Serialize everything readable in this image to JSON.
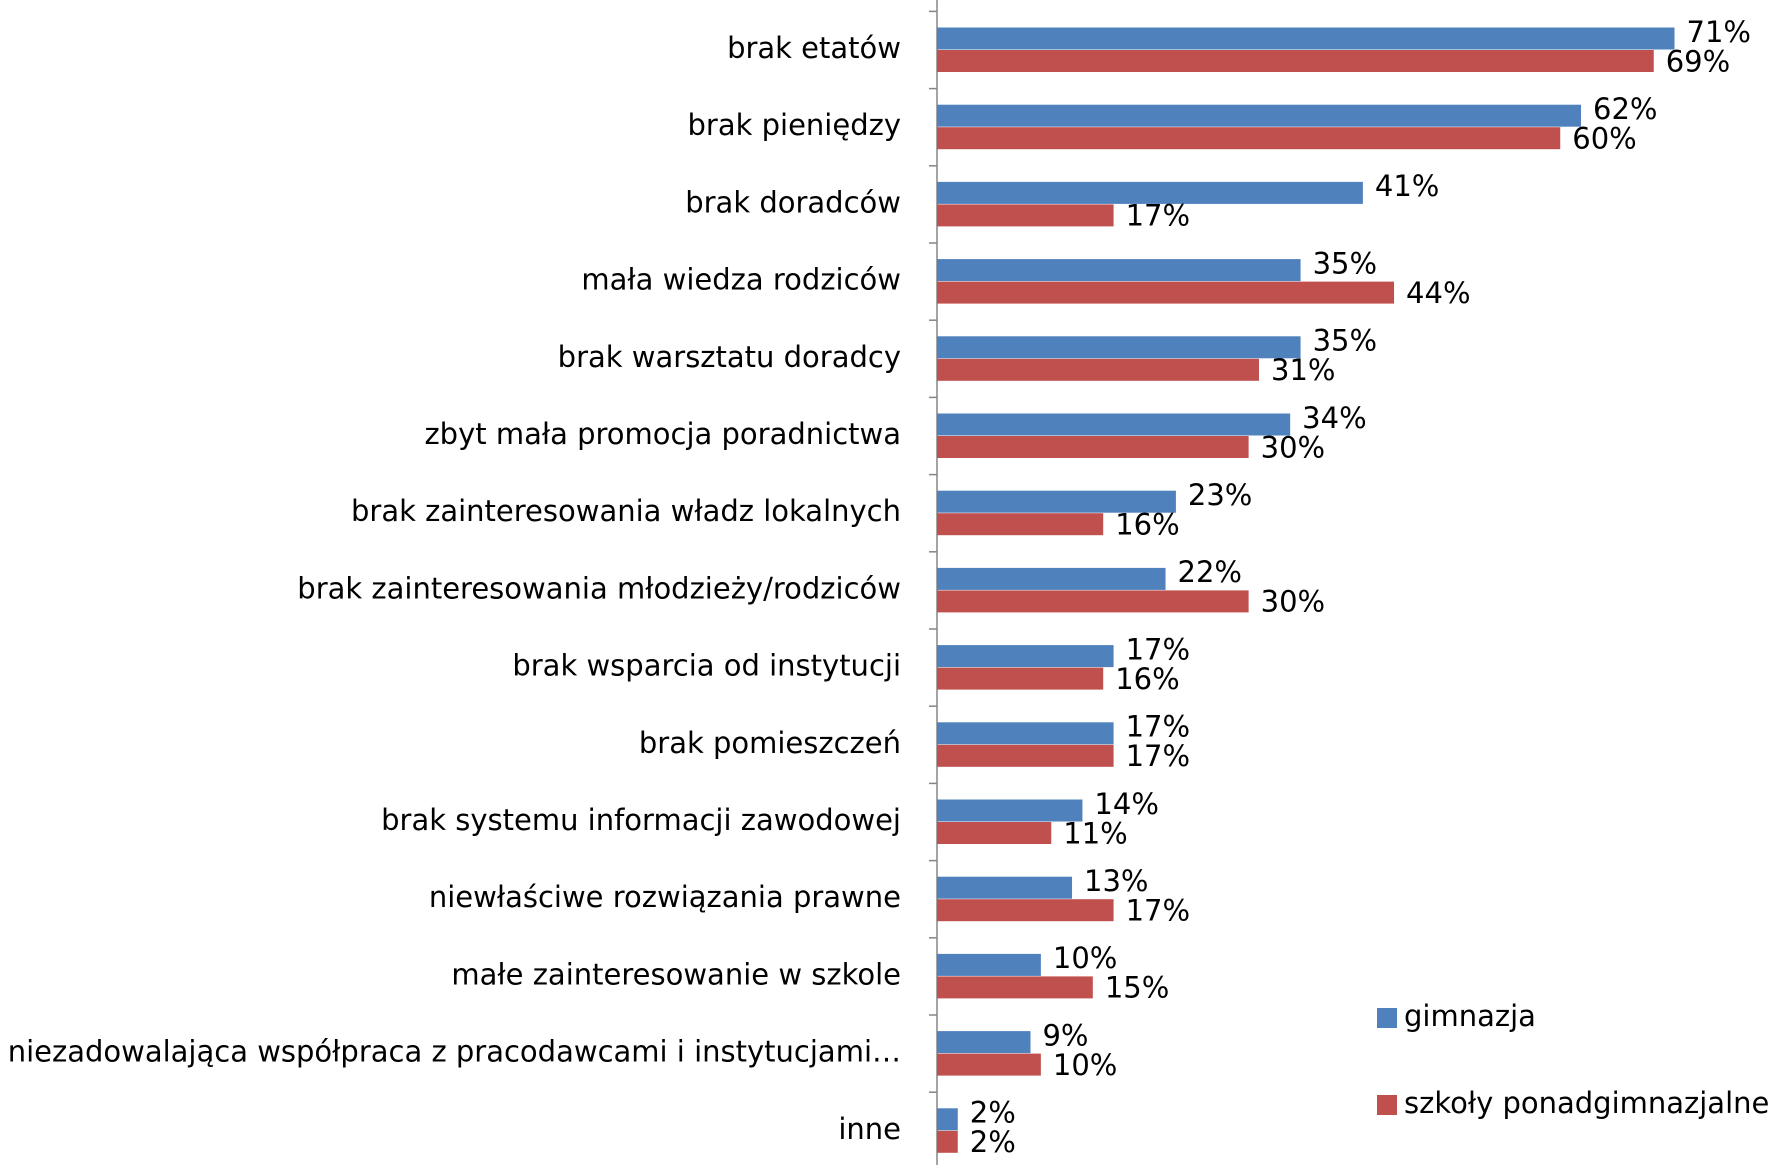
{
  "chart_data": {
    "type": "barh",
    "categories": [
      "brak etatów",
      "brak pieniędzy",
      "brak doradców",
      "mała wiedza rodziców",
      "brak warsztatu doradcy",
      "zbyt mała promocja poradnictwa",
      "brak zainteresowania władz lokalnych",
      "brak zainteresowania młodzieży/rodziców",
      "brak wsparcia od instytucji",
      "brak pomieszczeń",
      "brak systemu informacji zawodowej",
      "niewłaściwe rozwiązania prawne",
      "małe zainteresowanie w szkole",
      "niezadowalająca współpraca z pracodawcami i instytucjami…",
      "inne"
    ],
    "series": [
      {
        "name": "gimnazja",
        "color": "#4f81bd",
        "values": [
          71,
          62,
          41,
          35,
          35,
          34,
          23,
          22,
          17,
          17,
          14,
          13,
          10,
          9,
          2
        ],
        "value_labels": [
          "71%",
          "62%",
          "41%",
          "35%",
          "35%",
          "34%",
          "23%",
          "22%",
          "17%",
          "17%",
          "14%",
          "13%",
          "10%",
          "9%",
          "2%"
        ]
      },
      {
        "name": "szkoły ponadgimnazjalne",
        "color": "#c0504d",
        "values": [
          69,
          60,
          17,
          44,
          31,
          30,
          16,
          30,
          16,
          17,
          11,
          17,
          15,
          10,
          2
        ],
        "value_labels": [
          "69%",
          "60%",
          "17%",
          "44%",
          "31%",
          "30%",
          "16%",
          "30%",
          "16%",
          "17%",
          "11%",
          "17%",
          "15%",
          "10%",
          "2%"
        ]
      }
    ],
    "xlim": [
      0,
      80
    ],
    "legend": "lower right"
  }
}
